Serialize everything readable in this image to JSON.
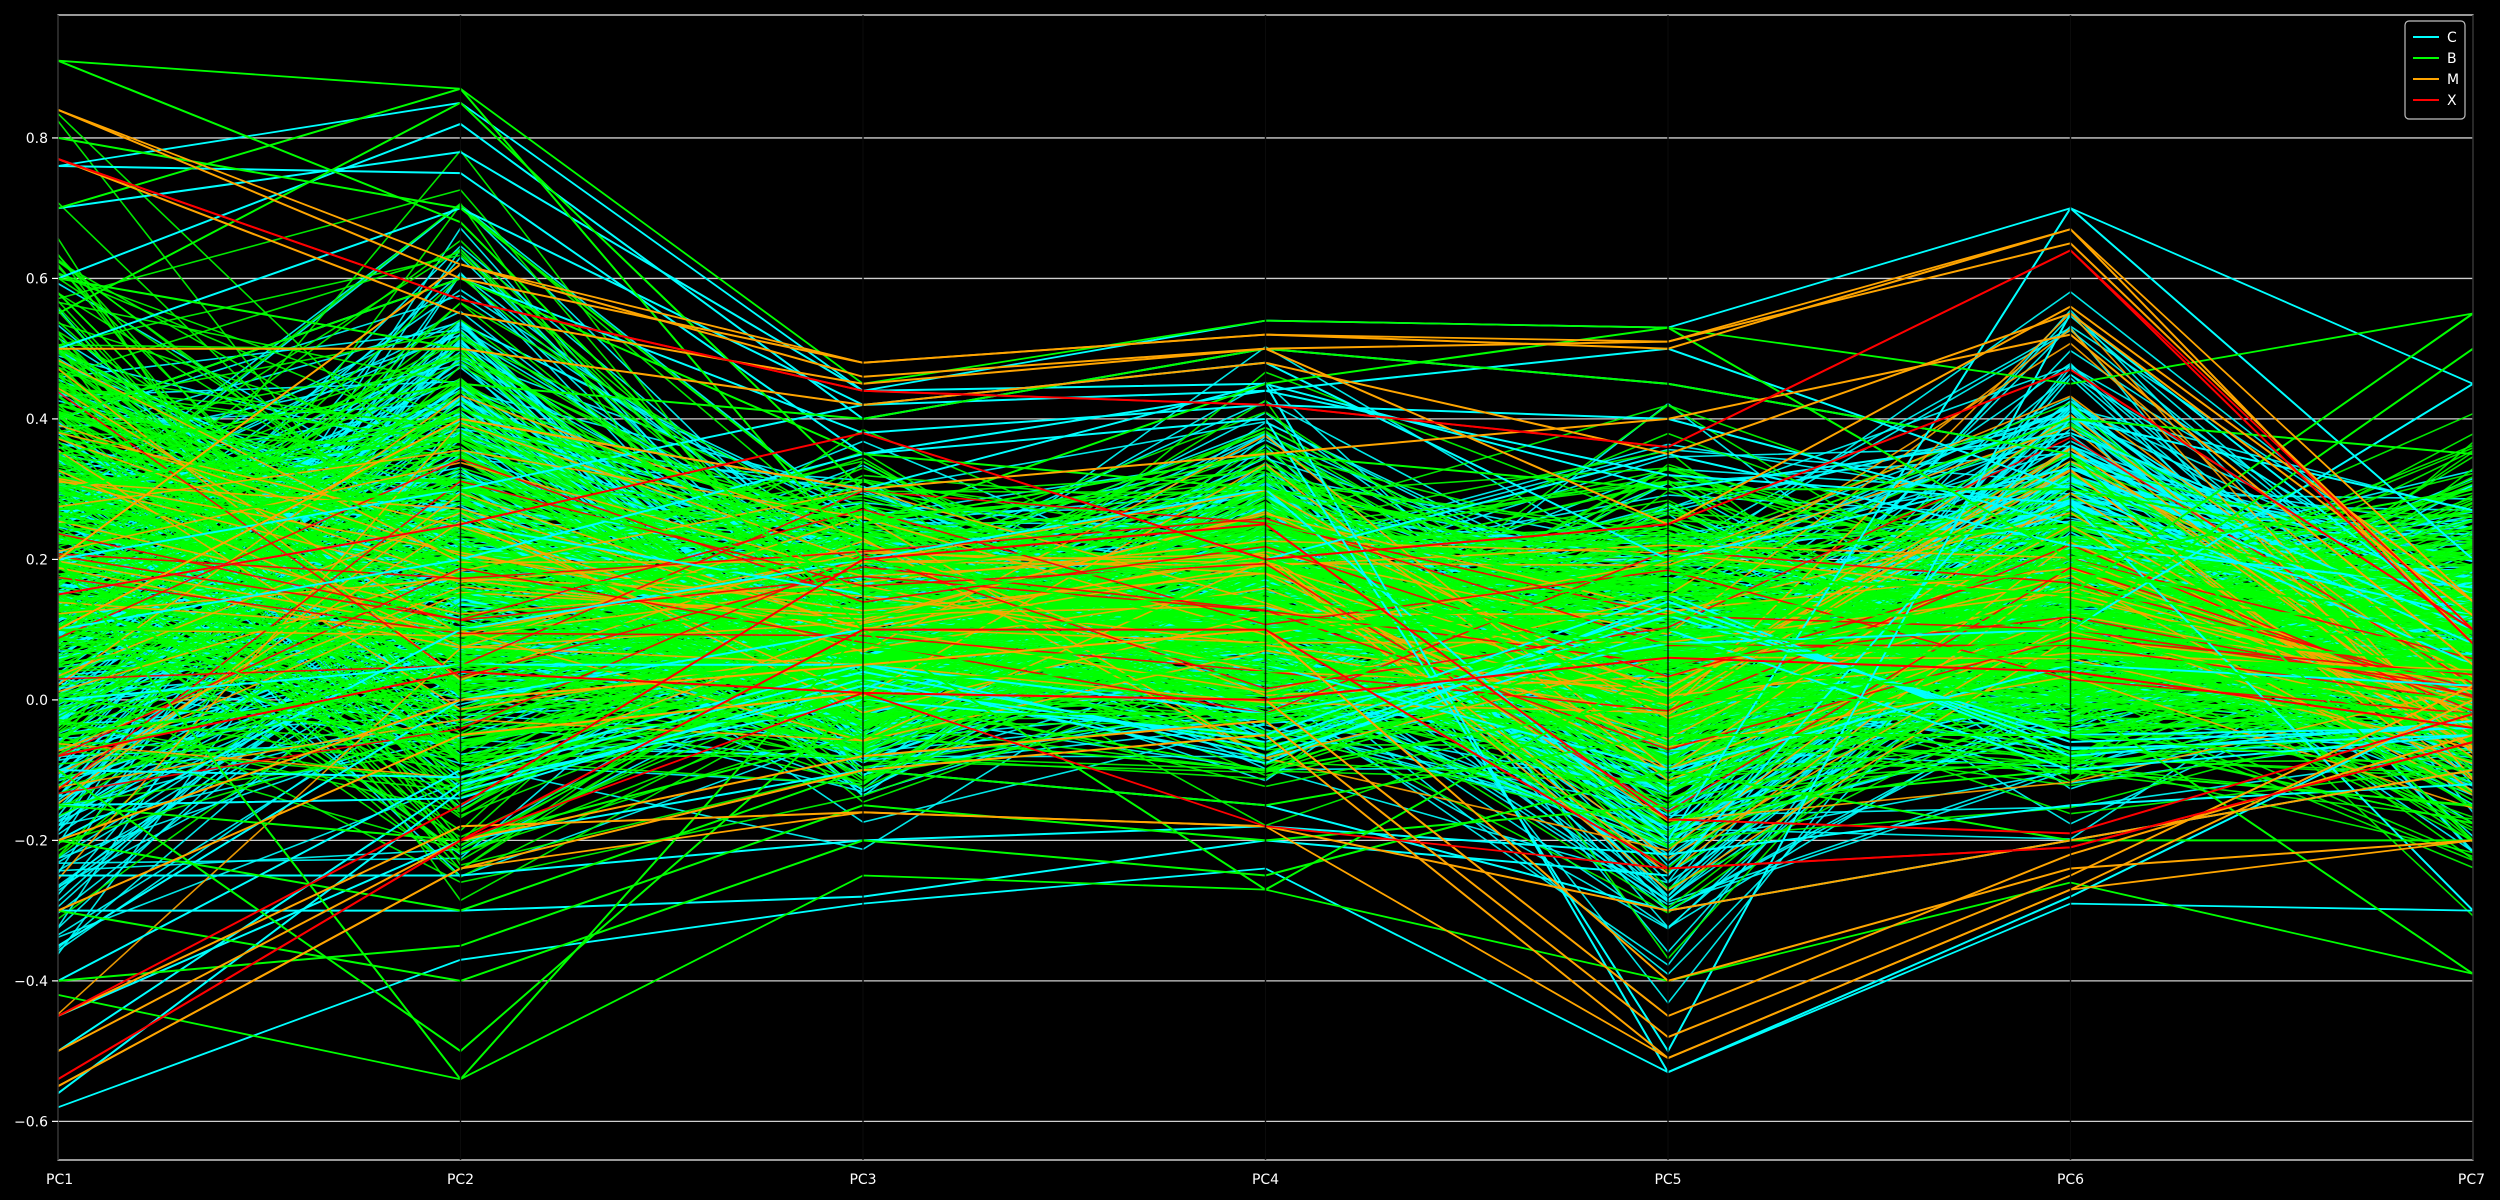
{
  "chart_data": {
    "type": "line",
    "chart_kind": "parallel-coordinates",
    "title": "",
    "xlabel": "",
    "ylabel": "",
    "dimensions": [
      "PC1",
      "PC2",
      "PC3",
      "PC4",
      "PC5",
      "PC6",
      "PC7"
    ],
    "ylim": [
      -0.655,
      0.975
    ],
    "yticks": [
      -0.6,
      -0.4,
      -0.2,
      0.0,
      0.2,
      0.4,
      0.6,
      0.8
    ],
    "ytick_labels": [
      "−0.6",
      "−0.4",
      "−0.2",
      "0.0",
      "0.2",
      "0.4",
      "0.6",
      "0.8"
    ],
    "grid": {
      "horizontal": true,
      "vertical": true
    },
    "legend_position": "top-right",
    "background": "#000000",
    "series": [
      {
        "name": "C",
        "color": "#00ffff",
        "envelope_min": [
          -0.58,
          -0.37,
          -0.29,
          -0.24,
          -0.53,
          -0.29,
          -0.3
        ],
        "envelope_max": [
          0.76,
          0.85,
          0.44,
          0.54,
          0.53,
          0.7,
          0.45
        ],
        "lines": [
          [
            -0.56,
            -0.13,
            0.02,
            -0.06,
            0.13,
            -0.06,
            -0.04
          ],
          [
            -0.4,
            -0.1,
            0.05,
            -0.08,
            0.1,
            -0.1,
            -0.05
          ],
          [
            -0.5,
            -0.12,
            0.0,
            -0.05,
            0.15,
            -0.08,
            -0.03
          ],
          [
            0.7,
            0.78,
            0.44,
            0.45,
            0.3,
            0.38,
            0.15
          ],
          [
            0.6,
            0.82,
            0.4,
            0.5,
            0.45,
            0.35,
            0.1
          ],
          [
            0.76,
            0.75,
            0.35,
            0.44,
            0.5,
            0.3,
            0.05
          ],
          [
            -0.2,
            0.1,
            0.2,
            0.3,
            -0.2,
            0.7,
            0.2
          ],
          [
            0.1,
            0.2,
            0.35,
            0.4,
            -0.5,
            0.55,
            0.1
          ],
          [
            0.3,
            0.4,
            0.3,
            0.45,
            -0.53,
            -0.28,
            0.0
          ],
          [
            -0.3,
            -0.3,
            -0.28,
            -0.2,
            -0.25,
            0.4,
            0.27
          ],
          [
            0.0,
            0.05,
            0.05,
            -0.02,
            0.08,
            0.1,
            0.45
          ],
          [
            0.2,
            0.3,
            0.42,
            0.44,
            0.32,
            0.28,
            -0.3
          ],
          [
            -0.15,
            -0.14,
            0.03,
            -0.09,
            0.14,
            -0.07,
            -0.05
          ],
          [
            -0.1,
            -0.11,
            0.04,
            -0.07,
            0.12,
            -0.05,
            -0.04
          ],
          [
            0.4,
            0.6,
            0.38,
            0.42,
            0.4,
            0.25,
            0.12
          ],
          [
            -0.45,
            -0.2,
            -0.1,
            -0.15,
            -0.3,
            -0.2,
            -0.1
          ],
          [
            0.5,
            0.7,
            0.42,
            0.48,
            0.2,
            0.33,
            0.08
          ],
          [
            -0.35,
            0.0,
            0.1,
            0.05,
            -0.1,
            0.05,
            0.02
          ],
          [
            0.15,
            0.25,
            0.15,
            0.2,
            0.35,
            0.22,
            0.16
          ],
          [
            -0.25,
            -0.25,
            -0.2,
            -0.18,
            -0.22,
            -0.15,
            -0.12
          ]
        ]
      },
      {
        "name": "B",
        "color": "#00ff00",
        "envelope_min": [
          -0.42,
          -0.54,
          -0.25,
          -0.27,
          -0.4,
          -0.26,
          -0.39
        ],
        "envelope_max": [
          0.91,
          0.87,
          0.45,
          0.54,
          0.53,
          0.45,
          0.55
        ],
        "lines": [
          [
            0.91,
            0.68,
            0.1,
            0.05,
            0.0,
            0.05,
            0.0
          ],
          [
            0.7,
            0.87,
            0.2,
            0.1,
            0.15,
            0.1,
            0.05
          ],
          [
            0.55,
            0.85,
            0.3,
            0.2,
            0.05,
            0.15,
            0.55
          ],
          [
            0.2,
            -0.54,
            0.1,
            -0.27,
            0.05,
            0.0,
            -0.39
          ],
          [
            -0.1,
            -0.5,
            0.0,
            -0.1,
            0.1,
            0.1,
            0.5
          ],
          [
            0.3,
            0.4,
            0.25,
            0.45,
            0.53,
            0.2,
            0.3
          ],
          [
            -0.05,
            0.02,
            0.05,
            0.08,
            0.18,
            0.15,
            0.1
          ],
          [
            0.0,
            -0.05,
            -0.02,
            -0.02,
            0.1,
            0.05,
            0.0
          ],
          [
            0.1,
            0.1,
            0.12,
            0.15,
            0.05,
            0.2,
            0.05
          ],
          [
            -0.2,
            -0.3,
            -0.1,
            -0.15,
            -0.05,
            -0.05,
            -0.1
          ],
          [
            0.4,
            0.6,
            0.35,
            0.3,
            0.2,
            0.25,
            0.15
          ],
          [
            -0.3,
            -0.4,
            -0.2,
            -0.25,
            -0.1,
            -0.2,
            -0.2
          ],
          [
            0.6,
            0.5,
            0.15,
            0.2,
            0.0,
            0.1,
            -0.05
          ],
          [
            0.05,
            0.15,
            0.2,
            0.1,
            0.12,
            0.12,
            0.08
          ],
          [
            -0.15,
            -0.2,
            -0.05,
            -0.1,
            0.0,
            0.0,
            -0.02
          ],
          [
            0.25,
            0.3,
            0.18,
            0.25,
            0.15,
            0.18,
            0.12
          ],
          [
            0.8,
            0.7,
            0.25,
            0.35,
            0.3,
            0.3,
            0.2
          ],
          [
            -0.4,
            -0.35,
            -0.15,
            -0.2,
            -0.15,
            -0.1,
            -0.15
          ],
          [
            0.15,
            -0.1,
            0.08,
            0.0,
            0.2,
            0.4,
            0.35
          ],
          [
            0.35,
            0.45,
            0.4,
            0.5,
            0.45,
            0.35,
            -0.2
          ],
          [
            -0.08,
            0.05,
            0.03,
            0.04,
            0.06,
            0.08,
            0.03
          ],
          [
            0.5,
            0.2,
            0.1,
            0.12,
            0.08,
            0.06,
            0.04
          ]
        ]
      },
      {
        "name": "M",
        "color": "#ffa500",
        "envelope_min": [
          -0.55,
          -0.24,
          -0.16,
          -0.18,
          -0.51,
          -0.27,
          -0.2
        ],
        "envelope_max": [
          0.84,
          0.62,
          0.48,
          0.52,
          0.51,
          0.67,
          0.14
        ],
        "lines": [
          [
            0.84,
            0.6,
            0.48,
            0.52,
            0.5,
            0.67,
            0.08
          ],
          [
            0.77,
            0.55,
            0.45,
            0.5,
            0.51,
            0.65,
            0.1
          ],
          [
            -0.55,
            -0.24,
            -0.1,
            -0.05,
            -0.51,
            -0.27,
            0.0
          ],
          [
            -0.5,
            -0.2,
            -0.08,
            -0.03,
            -0.48,
            -0.25,
            0.02
          ],
          [
            -0.3,
            -0.05,
            0.01,
            0.0,
            -0.45,
            -0.22,
            -0.05
          ],
          [
            0.2,
            0.62,
            0.46,
            0.5,
            0.25,
            0.56,
            0.14
          ],
          [
            -0.45,
            -0.18,
            -0.16,
            -0.18,
            -0.3,
            -0.2,
            -0.1
          ],
          [
            0.1,
            0.4,
            0.3,
            0.35,
            0.4,
            0.52,
            0.05
          ],
          [
            -0.2,
            0.0,
            0.05,
            0.1,
            -0.4,
            -0.24,
            -0.2
          ],
          [
            0.5,
            0.5,
            0.42,
            0.48,
            0.35,
            0.55,
            0.12
          ]
        ]
      },
      {
        "name": "X",
        "color": "#ff0000",
        "envelope_min": [
          -0.54,
          -0.2,
          0.01,
          -0.18,
          -0.24,
          -0.21,
          -0.06
        ],
        "envelope_max": [
          0.77,
          0.57,
          0.44,
          0.42,
          0.36,
          0.64,
          0.1
        ],
        "lines": [
          [
            -0.08,
            0.04,
            0.01,
            0.0,
            0.06,
            0.04,
            -0.04
          ],
          [
            0.77,
            0.57,
            0.44,
            0.42,
            0.36,
            0.64,
            0.08
          ],
          [
            -0.54,
            -0.2,
            0.1,
            0.1,
            -0.24,
            -0.21,
            -0.06
          ],
          [
            -0.45,
            -0.15,
            0.2,
            0.25,
            -0.17,
            -0.19,
            -0.02
          ],
          [
            0.15,
            0.25,
            0.38,
            0.2,
            0.25,
            0.47,
            0.1
          ]
        ]
      }
    ],
    "legend": [
      {
        "label": "C",
        "color": "#00ffff"
      },
      {
        "label": "B",
        "color": "#00ff00"
      },
      {
        "label": "M",
        "color": "#ffa500"
      },
      {
        "label": "X",
        "color": "#ff0000"
      }
    ]
  }
}
